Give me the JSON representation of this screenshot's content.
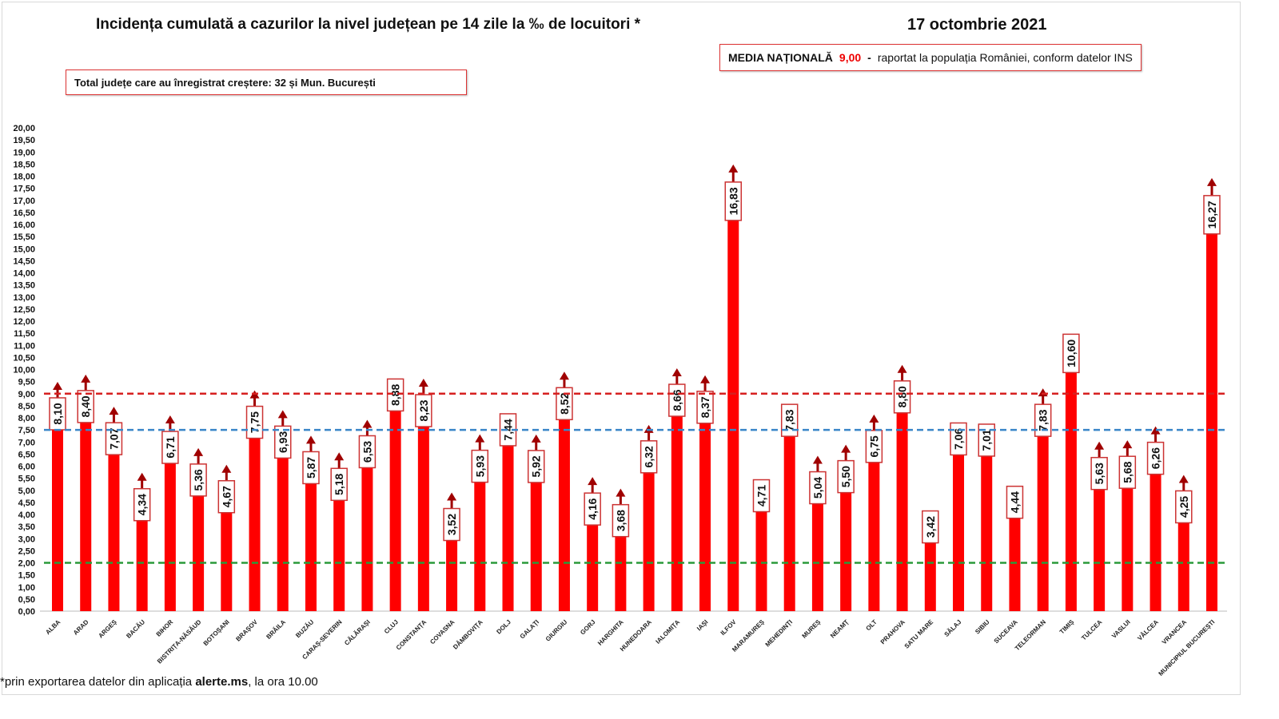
{
  "header": {
    "title": "Incidența cumulată a cazurilor la nivel județean pe 14 zile la ‰ de locuitori *",
    "date": "17 octombrie 2021",
    "media_label": "MEDIA NAȚIONALĂ",
    "media_value": "9,00",
    "media_dash": "-",
    "media_note": "raportat la populația României, conform datelor INS",
    "total_note": "Total județe care au înregistrat creștere:  32 și Mun. București"
  },
  "footer": {
    "prefix": "*prin exportarea datelor din aplicația",
    "app": "alerte.ms",
    "suffix": ", la ora 10.00"
  },
  "chart_data": {
    "type": "bar",
    "title": "Incidența cumulată a cazurilor la nivel județean pe 14 zile la ‰ de locuitori *",
    "ylim": [
      0,
      20
    ],
    "ytick_step": 0.5,
    "categories": [
      "ALBA",
      "ARAD",
      "ARGEȘ",
      "BACĂU",
      "BIHOR",
      "BISTRIȚA-NĂSĂUD",
      "BOTOȘANI",
      "BRAȘOV",
      "BRĂILA",
      "BUZĂU",
      "CARAȘ-SEVERIN",
      "CĂLĂRAȘI",
      "CLUJ",
      "CONSTANȚA",
      "COVASNA",
      "DÂMBOVIȚA",
      "DOLJ",
      "GALAȚI",
      "GIURGIU",
      "GORJ",
      "HARGHITA",
      "HUNEDOARA",
      "IALOMIȚA",
      "IAȘI",
      "ILFOV",
      "MARAMUREȘ",
      "MEHEDINȚI",
      "MUREȘ",
      "NEAMȚ",
      "OLT",
      "PRAHOVA",
      "SATU MARE",
      "SĂLAJ",
      "SIBIU",
      "SUCEAVA",
      "TELEORMAN",
      "TIMIȘ",
      "TULCEA",
      "VASLUI",
      "VÂLCEA",
      "VRANCEA",
      "MUNICIPIUL BUCUREȘTI"
    ],
    "values": [
      8.1,
      8.4,
      7.07,
      4.34,
      6.71,
      5.36,
      4.67,
      7.75,
      6.93,
      5.87,
      5.18,
      6.53,
      8.88,
      8.23,
      3.52,
      5.93,
      7.44,
      5.92,
      8.52,
      4.16,
      3.68,
      6.32,
      8.66,
      8.37,
      16.83,
      4.71,
      7.83,
      5.04,
      5.5,
      6.75,
      8.8,
      3.42,
      7.06,
      7.01,
      4.44,
      7.83,
      10.6,
      5.63,
      5.68,
      6.26,
      4.25,
      16.27
    ],
    "labels": [
      "8,10",
      "8,40",
      "7,07",
      "4,34",
      "6,71",
      "5,36",
      "4,67",
      "7,75",
      "6,93",
      "5,87",
      "5,18",
      "6,53",
      "8,88",
      "8,23",
      "3,52",
      "5,93",
      "7,44",
      "5,92",
      "8,52",
      "4,16",
      "3,68",
      "6,32",
      "8,66",
      "8,37",
      "16,83",
      "4,71",
      "7,83",
      "5,04",
      "5,50",
      "6,75",
      "8,80",
      "3,42",
      "7,06",
      "7,01",
      "4,44",
      "7,83",
      "10,60",
      "5,63",
      "5,68",
      "6,26",
      "4,25",
      "16,27"
    ],
    "increase": [
      true,
      true,
      true,
      true,
      true,
      true,
      true,
      true,
      true,
      true,
      true,
      true,
      false,
      true,
      true,
      true,
      false,
      true,
      true,
      true,
      true,
      true,
      true,
      true,
      true,
      false,
      false,
      true,
      true,
      true,
      true,
      false,
      false,
      false,
      false,
      true,
      false,
      true,
      true,
      true,
      true,
      true
    ],
    "reference_lines": [
      {
        "value": 9.0,
        "color": "#d62020",
        "style": "dashed"
      },
      {
        "value": 7.5,
        "color": "#3a86c8",
        "style": "dashed"
      },
      {
        "value": 2.0,
        "color": "#2a9a3a",
        "style": "dashed"
      }
    ],
    "bar_color": "#ff0000",
    "arrow_color": "#a00000",
    "grid": false
  }
}
